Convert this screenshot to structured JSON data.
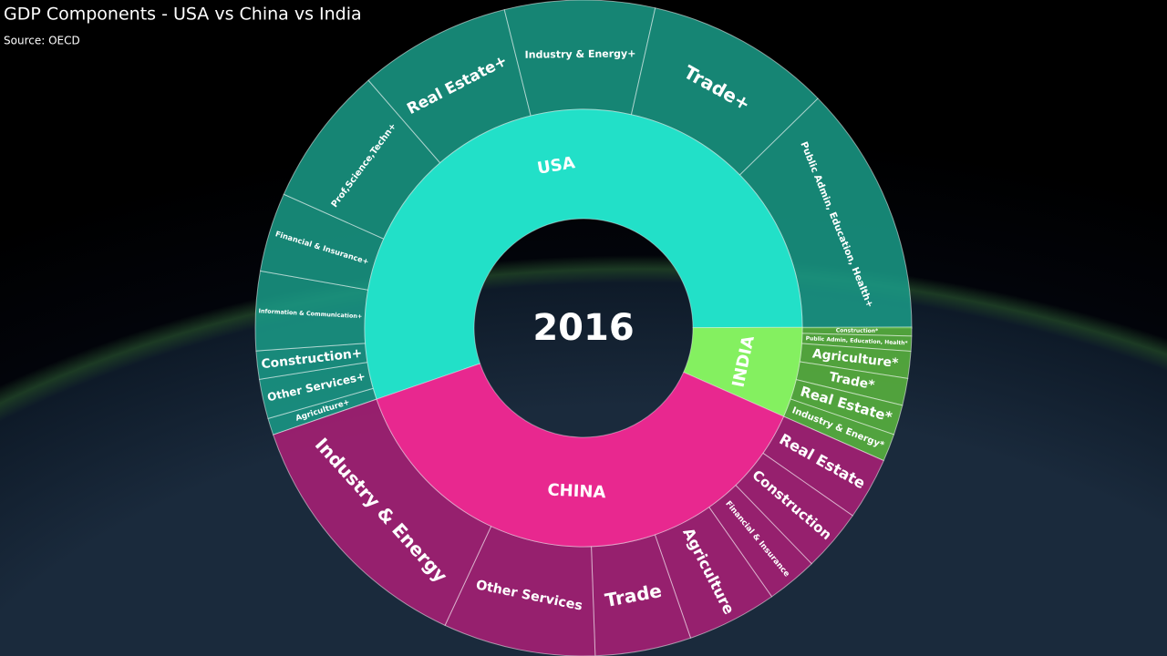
{
  "chart_data": {
    "type": "sunburst",
    "title": "GDP Components - USA vs China vs India",
    "subtitle": "Source: OECD",
    "center_label": "2016",
    "segments": [
      {
        "name": "USA",
        "value": 18.7,
        "color": "#22e0c8",
        "child_color": "#1a9c88",
        "children": [
          {
            "name": "Agriculture+",
            "value": 0.28
          },
          {
            "name": "Other Services+",
            "value": 0.66
          },
          {
            "name": "Construction+",
            "value": 0.47
          },
          {
            "name": "Information & Communication+",
            "value": 1.32
          },
          {
            "name": "Financial & Insurance+",
            "value": 1.32
          },
          {
            "name": "Prof,Science,Techn+",
            "value": 2.35
          },
          {
            "name": "Real Estate+",
            "value": 2.54
          },
          {
            "name": "Industry & Energy+",
            "value": 2.5
          },
          {
            "name": "Trade+",
            "value": 3.1
          },
          {
            "name": "Public Admin, Education, Health+",
            "value": 4.18
          }
        ]
      },
      {
        "name": "INDIA",
        "value": 2.26,
        "color": "#84f060",
        "child_color": "#5cb83e",
        "children": [
          {
            "name": "Construction*",
            "value": 0.15
          },
          {
            "name": "Public Admin, Education, Health*",
            "value": 0.25
          },
          {
            "name": "Agriculture*",
            "value": 0.45
          },
          {
            "name": "Trade*",
            "value": 0.45
          },
          {
            "name": "Real Estate*",
            "value": 0.5
          },
          {
            "name": "Industry & Energy*",
            "value": 0.46
          }
        ]
      },
      {
        "name": "CHINA",
        "value": 12.9,
        "color": "#e8288f",
        "child_color": "#ad1f77",
        "children": [
          {
            "name": "Real Estate",
            "value": 1.04
          },
          {
            "name": "Construction",
            "value": 1.04
          },
          {
            "name": "Financial & Insurance",
            "value": 0.85
          },
          {
            "name": "Agriculture",
            "value": 1.5
          },
          {
            "name": "Trade",
            "value": 1.6
          },
          {
            "name": "Other Services",
            "value": 2.54
          },
          {
            "name": "Industry & Energy",
            "value": 4.33
          }
        ]
      }
    ]
  }
}
